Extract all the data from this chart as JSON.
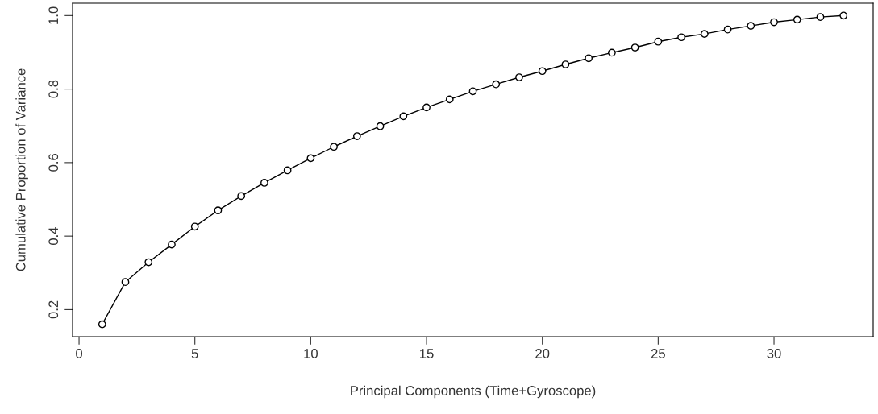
{
  "chart_data": {
    "type": "line",
    "xlabel": "Principal Components (Time+Gyroscope)",
    "ylabel": "Cumulative Proportion of Variance",
    "x": [
      1,
      2,
      3,
      4,
      5,
      6,
      7,
      8,
      9,
      10,
      11,
      12,
      13,
      14,
      15,
      16,
      17,
      18,
      19,
      20,
      21,
      22,
      23,
      24,
      25,
      26,
      27,
      28,
      29,
      30,
      31,
      32,
      33
    ],
    "series": [
      {
        "color": "#000000",
        "values": [
          0.16,
          0.275,
          0.329,
          0.377,
          0.426,
          0.47,
          0.509,
          0.545,
          0.579,
          0.612,
          0.643,
          0.672,
          0.699,
          0.726,
          0.75,
          0.772,
          0.794,
          0.813,
          0.832,
          0.849,
          0.867,
          0.884,
          0.899,
          0.913,
          0.929,
          0.941,
          0.95,
          0.962,
          0.972,
          0.982,
          0.989,
          0.996,
          1.0
        ]
      }
    ],
    "xlim": [
      -0.28,
      34.28
    ],
    "ylim": [
      0.1264,
      1.0336
    ],
    "xticks": [
      0,
      5,
      10,
      15,
      20,
      25,
      30
    ],
    "yticks": [
      0.2,
      0.4,
      0.6,
      0.8,
      {
        "value": 1,
        "label": "1.0"
      }
    ],
    "marker": "circle",
    "line_style": "solid",
    "grid": false
  }
}
